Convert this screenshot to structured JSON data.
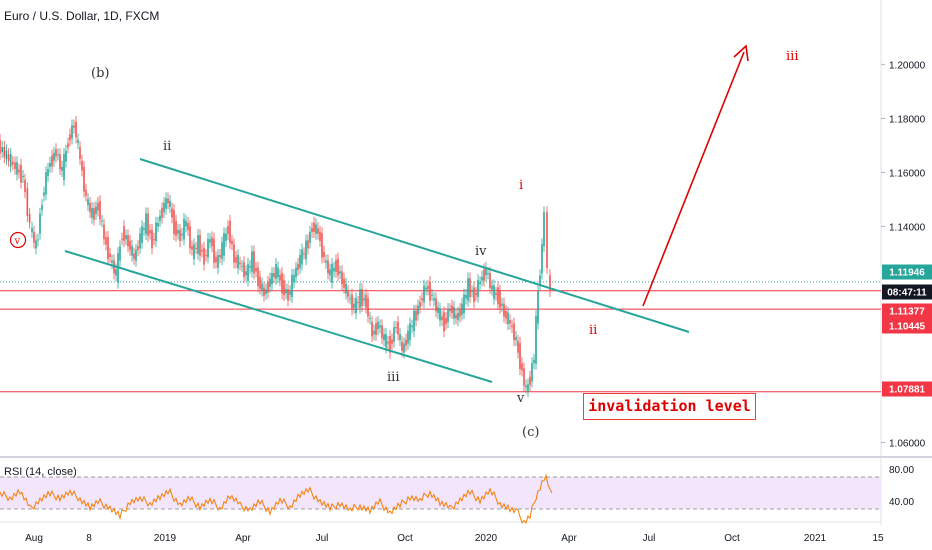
{
  "header": {
    "title": "Euro / U.S. Dollar, 1D, FXCM"
  },
  "rsi": {
    "title": "RSI (14, close)",
    "levels": [
      "80.00",
      "40.00"
    ]
  },
  "annotation": {
    "invalidation": "invalidation level"
  },
  "colors": {
    "channel": "#26a69a",
    "red": "#e00000",
    "hline": "#f23645",
    "rsi_line": "#f57c00",
    "rsi_band": "#f3e5fb",
    "dark": "#333333",
    "badge_dark": "#131722"
  },
  "chart_data": {
    "type": "line",
    "title": "Euro / U.S. Dollar, 1D, FXCM",
    "y_ticks": [
      "1.20000",
      "1.18000",
      "1.16000",
      "1.14000",
      "1.06000"
    ],
    "ylim": [
      1.055,
      1.222
    ],
    "x_ticks": [
      "Aug",
      "8",
      "2019",
      "Apr",
      "Jul",
      "Oct",
      "2020",
      "Apr",
      "Jul",
      "Oct",
      "2021",
      "15"
    ],
    "price_badges": [
      {
        "label": "1.11946",
        "value": 1.11946,
        "style": "teal"
      },
      {
        "label": "08:47:11",
        "value": 1.1162,
        "style": "dark"
      },
      {
        "label": "1.11377",
        "value": 1.11377,
        "style": "red"
      },
      {
        "label": "1.10445",
        "value": 1.10445,
        "style": "red"
      },
      {
        "label": "1.07881",
        "value": 1.07881,
        "style": "red"
      }
    ],
    "horizontal_levels": [
      1.1162,
      1.1094,
      1.0788
    ],
    "wave_labels": [
      {
        "text": "(b)",
        "color": "dark"
      },
      {
        "text": "ii",
        "color": "dark"
      },
      {
        "text": "iii",
        "color": "dark"
      },
      {
        "text": "iv",
        "color": "dark"
      },
      {
        "text": "v",
        "color": "dark"
      },
      {
        "text": "(c)",
        "color": "dark"
      },
      {
        "text": "i",
        "color": "red"
      },
      {
        "text": "ii",
        "color": "red"
      },
      {
        "text": "iii",
        "color": "red"
      },
      {
        "text": "v",
        "color": "red",
        "circled": true
      }
    ],
    "price_path": [
      [
        0,
        1.17
      ],
      [
        15,
        1.163
      ],
      [
        25,
        1.158
      ],
      [
        32,
        1.14
      ],
      [
        38,
        1.132
      ],
      [
        44,
        1.15
      ],
      [
        50,
        1.162
      ],
      [
        58,
        1.168
      ],
      [
        64,
        1.16
      ],
      [
        70,
        1.172
      ],
      [
        76,
        1.178
      ],
      [
        82,
        1.165
      ],
      [
        88,
        1.15
      ],
      [
        94,
        1.144
      ],
      [
        100,
        1.148
      ],
      [
        106,
        1.136
      ],
      [
        112,
        1.128
      ],
      [
        118,
        1.122
      ],
      [
        124,
        1.138
      ],
      [
        130,
        1.134
      ],
      [
        136,
        1.128
      ],
      [
        142,
        1.136
      ],
      [
        148,
        1.142
      ],
      [
        154,
        1.134
      ],
      [
        160,
        1.142
      ],
      [
        166,
        1.148
      ],
      [
        170,
        1.15
      ],
      [
        176,
        1.14
      ],
      [
        182,
        1.136
      ],
      [
        188,
        1.142
      ],
      [
        194,
        1.13
      ],
      [
        200,
        1.134
      ],
      [
        206,
        1.128
      ],
      [
        212,
        1.136
      ],
      [
        218,
        1.126
      ],
      [
        224,
        1.132
      ],
      [
        230,
        1.14
      ],
      [
        236,
        1.128
      ],
      [
        242,
        1.126
      ],
      [
        248,
        1.122
      ],
      [
        254,
        1.128
      ],
      [
        260,
        1.12
      ],
      [
        266,
        1.115
      ],
      [
        272,
        1.12
      ],
      [
        278,
        1.124
      ],
      [
        284,
        1.118
      ],
      [
        290,
        1.114
      ],
      [
        296,
        1.122
      ],
      [
        302,
        1.128
      ],
      [
        308,
        1.132
      ],
      [
        314,
        1.14
      ],
      [
        320,
        1.138
      ],
      [
        326,
        1.128
      ],
      [
        332,
        1.122
      ],
      [
        338,
        1.126
      ],
      [
        344,
        1.12
      ],
      [
        350,
        1.114
      ],
      [
        356,
        1.11
      ],
      [
        362,
        1.114
      ],
      [
        368,
        1.112
      ],
      [
        374,
        1.1
      ],
      [
        380,
        1.104
      ],
      [
        386,
        1.098
      ],
      [
        392,
        1.096
      ],
      [
        398,
        1.104
      ],
      [
        404,
        1.094
      ],
      [
        410,
        1.1
      ],
      [
        416,
        1.106
      ],
      [
        422,
        1.112
      ],
      [
        428,
        1.118
      ],
      [
        434,
        1.114
      ],
      [
        440,
        1.108
      ],
      [
        446,
        1.104
      ],
      [
        452,
        1.11
      ],
      [
        458,
        1.106
      ],
      [
        464,
        1.11
      ],
      [
        470,
        1.118
      ],
      [
        476,
        1.114
      ],
      [
        482,
        1.12
      ],
      [
        488,
        1.124
      ],
      [
        494,
        1.116
      ],
      [
        500,
        1.114
      ],
      [
        506,
        1.108
      ],
      [
        512,
        1.104
      ],
      [
        516,
        1.1
      ],
      [
        520,
        1.094
      ],
      [
        524,
        1.086
      ],
      [
        528,
        1.079
      ],
      [
        532,
        1.084
      ],
      [
        536,
        1.092
      ],
      [
        540,
        1.116
      ],
      [
        544,
        1.132
      ],
      [
        547,
        1.146
      ],
      [
        550,
        1.124
      ],
      [
        552,
        1.114
      ]
    ],
    "rsi_path": [
      [
        0,
        58
      ],
      [
        10,
        55
      ],
      [
        20,
        62
      ],
      [
        30,
        40
      ],
      [
        40,
        52
      ],
      [
        50,
        58
      ],
      [
        60,
        55
      ],
      [
        70,
        60
      ],
      [
        80,
        54
      ],
      [
        90,
        42
      ],
      [
        100,
        48
      ],
      [
        110,
        42
      ],
      [
        120,
        30
      ],
      [
        130,
        50
      ],
      [
        140,
        52
      ],
      [
        150,
        48
      ],
      [
        160,
        55
      ],
      [
        170,
        60
      ],
      [
        180,
        46
      ],
      [
        190,
        52
      ],
      [
        200,
        44
      ],
      [
        210,
        50
      ],
      [
        220,
        42
      ],
      [
        230,
        56
      ],
      [
        240,
        44
      ],
      [
        250,
        40
      ],
      [
        260,
        48
      ],
      [
        270,
        38
      ],
      [
        280,
        50
      ],
      [
        290,
        44
      ],
      [
        300,
        58
      ],
      [
        310,
        62
      ],
      [
        320,
        50
      ],
      [
        330,
        40
      ],
      [
        340,
        48
      ],
      [
        350,
        38
      ],
      [
        360,
        45
      ],
      [
        370,
        38
      ],
      [
        380,
        48
      ],
      [
        390,
        36
      ],
      [
        400,
        44
      ],
      [
        410,
        56
      ],
      [
        420,
        50
      ],
      [
        430,
        62
      ],
      [
        440,
        48
      ],
      [
        450,
        40
      ],
      [
        460,
        52
      ],
      [
        470,
        60
      ],
      [
        480,
        52
      ],
      [
        490,
        62
      ],
      [
        500,
        48
      ],
      [
        510,
        40
      ],
      [
        518,
        34
      ],
      [
        524,
        24
      ],
      [
        530,
        30
      ],
      [
        536,
        56
      ],
      [
        542,
        72
      ],
      [
        546,
        82
      ],
      [
        550,
        68
      ],
      [
        552,
        60
      ]
    ]
  }
}
